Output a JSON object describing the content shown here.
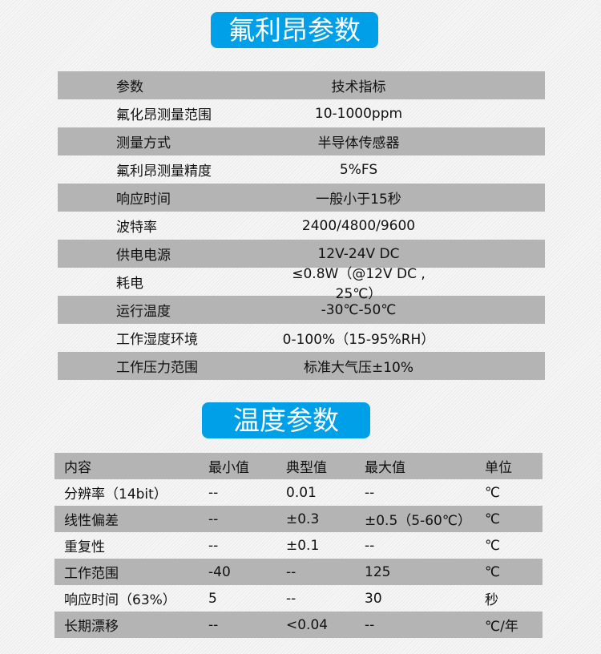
{
  "section1": {
    "title": "氟利昂参数",
    "header": [
      "参数",
      "技术指标"
    ],
    "rows": [
      [
        "氟化昂测量范围",
        "10-1000ppm"
      ],
      [
        "测量方式",
        "半导体传感器"
      ],
      [
        "氟利昂测量精度",
        "5%FS"
      ],
      [
        "响应时间",
        "一般小于15秒"
      ],
      [
        "波特率",
        "2400/4800/9600"
      ],
      [
        "供电电源",
        "12V-24V DC"
      ],
      [
        "耗电",
        "≤0.8W（@12V DC , 25℃）"
      ],
      [
        "运行温度",
        "-30℃-50℃"
      ],
      [
        "工作湿度环境",
        "0-100%（15-95%RH）"
      ],
      [
        "工作压力范围",
        "标准大气压±10%"
      ]
    ]
  },
  "section2": {
    "title": "温度参数",
    "header": [
      "内容",
      "最小值",
      "典型值",
      "最大值",
      "单位"
    ],
    "rows": [
      [
        "分辨率（14bit）",
        "--",
        "0.01",
        "--",
        "℃"
      ],
      [
        "线性偏差",
        "--",
        "±0.3",
        "±0.5（5-60℃）",
        "℃"
      ],
      [
        "重复性",
        "--",
        "±0.1",
        "--",
        "℃"
      ],
      [
        "工作范围",
        "-40",
        "--",
        "125",
        "℃"
      ],
      [
        "响应时间（63%）",
        "5",
        "--",
        "30",
        "秒"
      ],
      [
        "长期漂移",
        "--",
        "<0.04",
        "--",
        "℃/年"
      ]
    ]
  },
  "colors": {
    "accent": "#00a0e9",
    "row_gray": "#b4b4b4"
  }
}
